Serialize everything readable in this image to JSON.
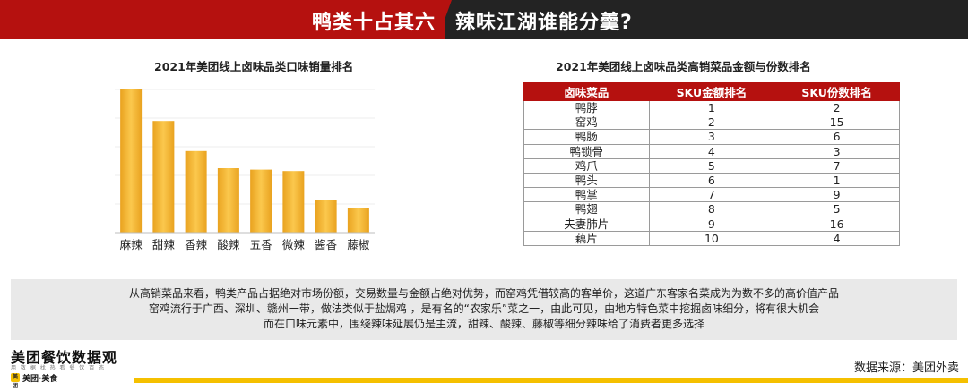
{
  "header": {
    "left_title": "鸭类十占其六",
    "right_title": "辣味江湖谁能分羹?"
  },
  "left_chart_title": "2021年美团线上卤味品类口味销量排名",
  "chart_data": {
    "type": "bar",
    "title": "2021年美团线上卤味品类口味销量排名",
    "categories": [
      "麻辣",
      "甜辣",
      "香辣",
      "酸辣",
      "五香",
      "微辣",
      "酱香",
      "藤椒"
    ],
    "values": [
      100,
      78,
      57,
      45,
      44,
      43,
      23,
      17
    ],
    "xlabel": "",
    "ylabel": "",
    "ylim": [
      0,
      100
    ],
    "grid": true,
    "bar_color": "#f5b533"
  },
  "table": {
    "title": "2021年美团线上卤味品类高销菜品金额与份数排名",
    "headers": [
      "卤味菜品",
      "SKU金额排名",
      "SKU份数排名"
    ],
    "rows": [
      [
        "鸭脖",
        "1",
        "2"
      ],
      [
        "窑鸡",
        "2",
        "15"
      ],
      [
        "鸭肠",
        "3",
        "6"
      ],
      [
        "鸭锁骨",
        "4",
        "3"
      ],
      [
        "鸡爪",
        "5",
        "7"
      ],
      [
        "鸭头",
        "6",
        "1"
      ],
      [
        "鸭掌",
        "7",
        "9"
      ],
      [
        "鸭翅",
        "8",
        "5"
      ],
      [
        "夫妻肺片",
        "9",
        "16"
      ],
      [
        "藕片",
        "10",
        "4"
      ]
    ]
  },
  "note_lines": [
    "从高销菜品来看，鸭类产品占据绝对市场份额，交易数量与金额占绝对优势，而窑鸡凭借较高的客单价，这道广东客家名菜成为为数不多的高价值产品",
    "窑鸡流行于广西、深圳、赣州一带，做法类似于盐焗鸡 ，是有名的“农家乐”菜之一，由此可见，由地方特色菜中挖掘卤味细分，将有很大机会",
    "而在口味元素中，围绕辣味延展仍是主流，甜辣、酸辣、藤椒等细分辣味给了消费者更多选择"
  ],
  "footer": {
    "logo_text": "美团餐饮数据观",
    "logo_tagline": "用 数 据 找 热 看 餐 饮 百 态",
    "badge_text": "美团·美食",
    "badge_mark": "美团",
    "source": "数据来源：美团外卖"
  },
  "colors": {
    "brand_red": "#b5110f",
    "header_dark": "#232323",
    "accent_yellow": "#f5c000"
  }
}
